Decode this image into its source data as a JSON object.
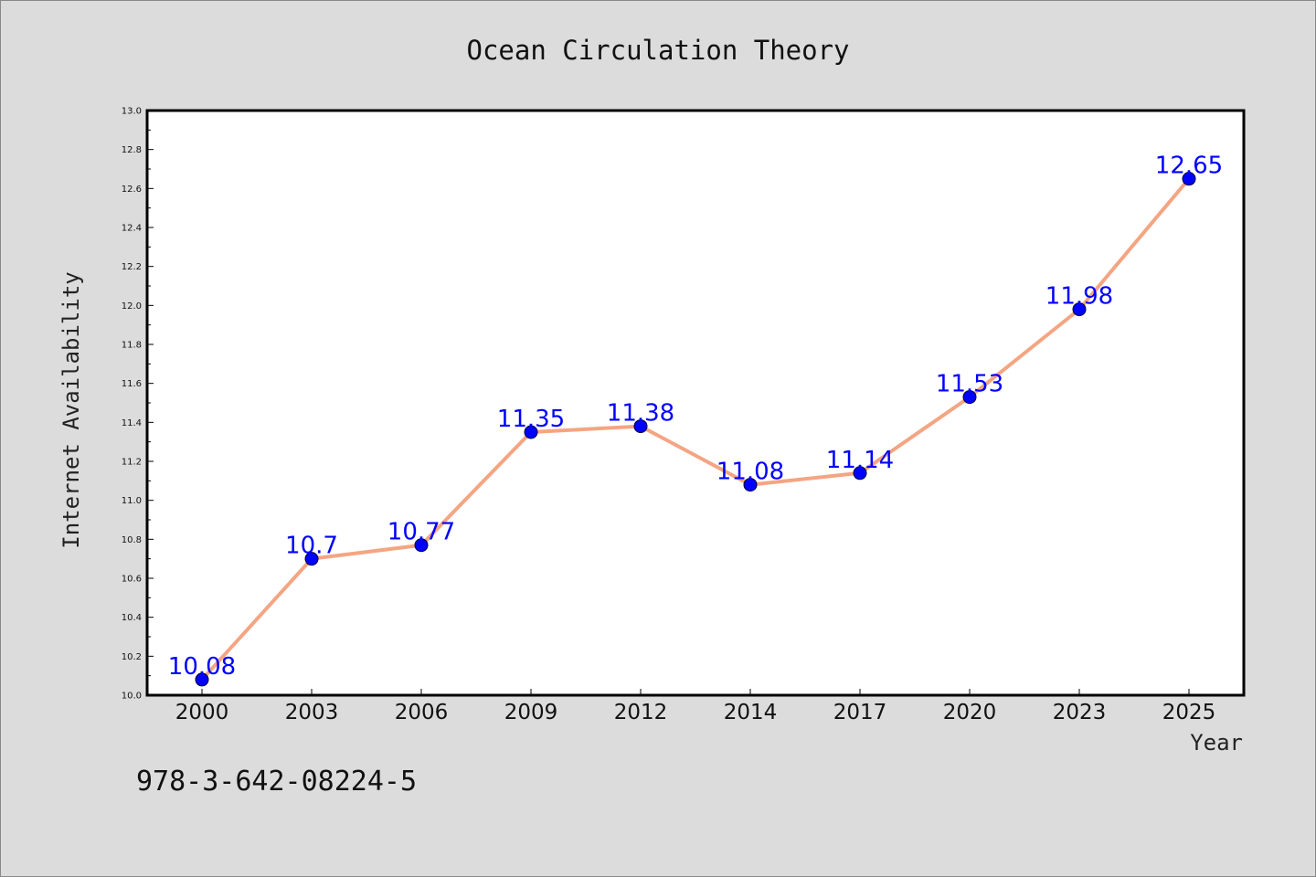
{
  "chart_data": {
    "type": "line",
    "title": "Ocean Circulation Theory",
    "xlabel": "Year",
    "ylabel": "Internet Availability",
    "categories": [
      "2000",
      "2003",
      "2006",
      "2009",
      "2012",
      "2014",
      "2017",
      "2020",
      "2023",
      "2025"
    ],
    "series": [
      {
        "values": [
          10.08,
          10.7,
          10.77,
          11.35,
          11.38,
          11.08,
          11.14,
          11.53,
          11.98,
          12.65
        ],
        "data_labels": [
          "10.08",
          "10.7",
          "10.77",
          "11.35",
          "11.38",
          "11.08",
          "11.14",
          "11.53",
          "11.98",
          "12.65"
        ]
      }
    ],
    "ylim": [
      10.0,
      13.0
    ],
    "yticks": [
      "10.0",
      "10.2",
      "10.4",
      "10.6",
      "10.8",
      "11.0",
      "11.2",
      "11.4",
      "11.6",
      "11.8",
      "12.0",
      "12.2",
      "12.4",
      "12.6",
      "12.8",
      "13.0"
    ],
    "grid": false,
    "legend": "none",
    "colors": {
      "line": "#f4a582",
      "marker": "#0000ff",
      "data_label": "#0000ff",
      "figure_background": "#dcdcdc",
      "plot_background": "#ffffff"
    }
  },
  "footer": {
    "text": "978-3-642-08224-5"
  }
}
